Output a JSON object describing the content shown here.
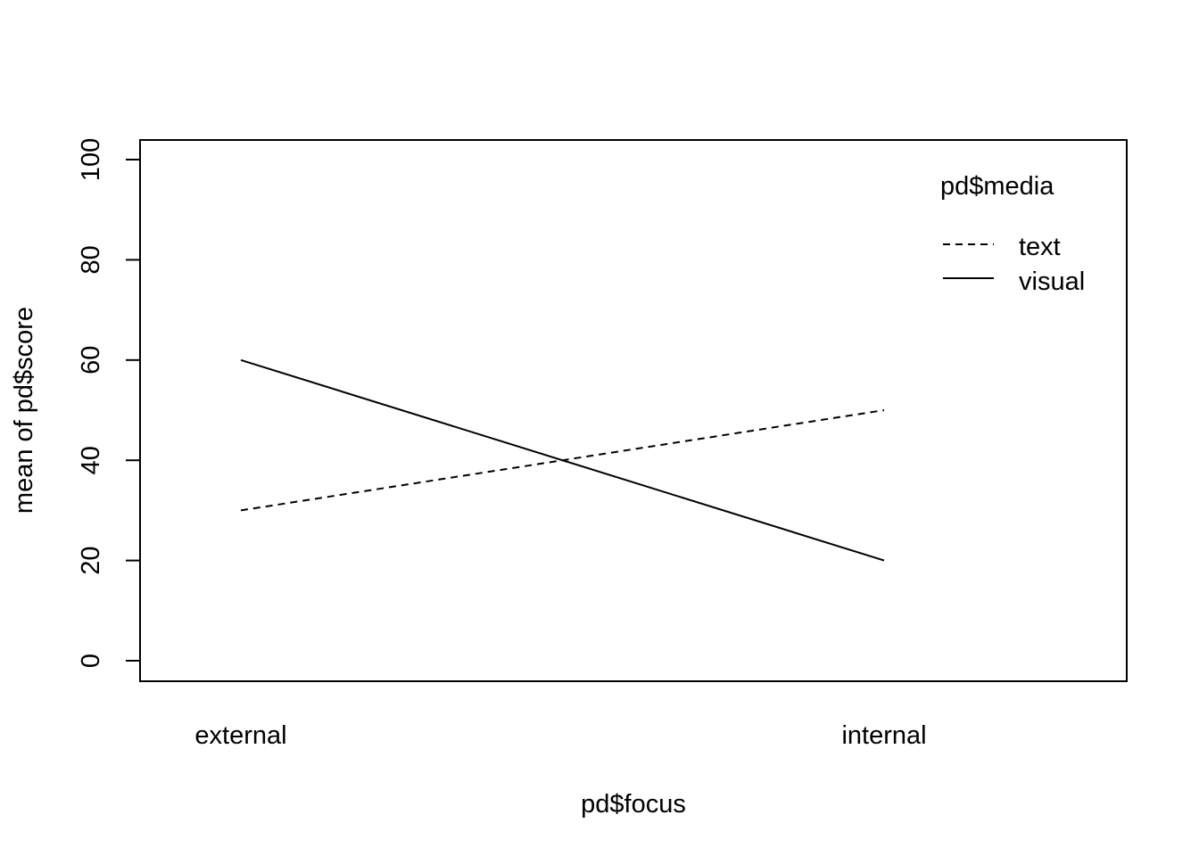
{
  "chart_data": {
    "type": "line",
    "xlabel": "pd$focus",
    "ylabel": "mean of  pd$score",
    "categories": [
      "external",
      "internal"
    ],
    "ylim": [
      0,
      100
    ],
    "yticks": [
      "0",
      "20",
      "40",
      "60",
      "80",
      "100"
    ],
    "legend": {
      "title": "pd$media",
      "position": "top-right"
    },
    "series": [
      {
        "name": "text",
        "values": [
          30,
          50
        ],
        "line_style": "dashed"
      },
      {
        "name": "visual",
        "values": [
          60,
          20
        ],
        "line_style": "solid"
      }
    ],
    "grid": false
  }
}
